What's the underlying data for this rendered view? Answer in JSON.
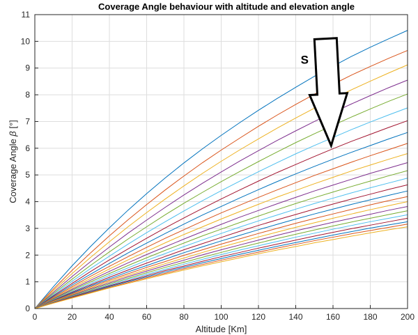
{
  "chart_data": {
    "type": "line",
    "title": "Coverage Angle behaviour with altitude and elevation angle",
    "xlabel": "Altitude [Km]",
    "ylabel_prefix": "Coverage Angle ",
    "ylabel_symbol": "β",
    "ylabel_suffix": " [°]",
    "xlim": [
      0,
      200
    ],
    "ylim": [
      0,
      11
    ],
    "xticks": [
      0,
      20,
      40,
      60,
      80,
      100,
      120,
      140,
      160,
      180,
      200
    ],
    "yticks": [
      0,
      1,
      2,
      3,
      4,
      5,
      6,
      7,
      8,
      9,
      10,
      11
    ],
    "grid": true,
    "x": [
      0,
      10,
      20,
      30,
      40,
      50,
      60,
      70,
      80,
      90,
      100,
      110,
      120,
      130,
      140,
      150,
      160,
      170,
      180,
      190,
      200
    ],
    "series": [
      {
        "values": [
          0,
          0.82,
          1.6,
          2.33,
          3.02,
          3.68,
          4.3,
          4.89,
          5.45,
          5.98,
          6.48,
          6.96,
          7.42,
          7.86,
          8.28,
          8.69,
          9.07,
          9.44,
          9.78,
          10.1,
          10.41
        ]
      },
      {
        "values": [
          0,
          0.73,
          1.43,
          2.09,
          2.72,
          3.32,
          3.89,
          4.44,
          4.96,
          5.46,
          5.93,
          6.38,
          6.82,
          7.24,
          7.64,
          8.02,
          8.39,
          8.74,
          9.06,
          9.37,
          9.66
        ]
      },
      {
        "values": [
          0,
          0.67,
          1.31,
          1.92,
          2.5,
          3.06,
          3.59,
          4.1,
          4.59,
          5.06,
          5.51,
          5.94,
          6.35,
          6.75,
          7.13,
          7.5,
          7.85,
          8.19,
          8.51,
          8.82,
          9.12
        ]
      },
      {
        "values": [
          0,
          0.61,
          1.2,
          1.76,
          2.3,
          2.82,
          3.31,
          3.79,
          4.25,
          4.69,
          5.11,
          5.52,
          5.91,
          6.29,
          6.65,
          7.0,
          7.34,
          7.66,
          7.97,
          8.27,
          8.55
        ]
      },
      {
        "values": [
          0,
          0.56,
          1.1,
          1.62,
          2.12,
          2.6,
          3.06,
          3.51,
          3.94,
          4.35,
          4.75,
          5.13,
          5.5,
          5.86,
          6.21,
          6.54,
          6.86,
          7.17,
          7.47,
          7.76,
          8.03
        ]
      },
      {
        "values": [
          0,
          0.52,
          1.02,
          1.5,
          1.96,
          2.41,
          2.84,
          3.25,
          3.65,
          4.04,
          4.41,
          4.77,
          5.12,
          5.46,
          5.79,
          6.1,
          6.4,
          6.7,
          6.98,
          7.25,
          7.51
        ]
      },
      {
        "values": [
          0,
          0.48,
          0.94,
          1.39,
          1.82,
          2.23,
          2.63,
          3.02,
          3.39,
          3.75,
          4.1,
          4.44,
          4.77,
          5.09,
          5.39,
          5.69,
          5.98,
          6.26,
          6.52,
          6.78,
          7.03
        ]
      },
      {
        "values": [
          0,
          0.45,
          0.88,
          1.29,
          1.69,
          2.08,
          2.45,
          2.81,
          3.16,
          3.5,
          3.82,
          4.14,
          4.45,
          4.75,
          5.04,
          5.32,
          5.59,
          5.85,
          6.1,
          6.35,
          6.59
        ]
      },
      {
        "values": [
          0,
          0.42,
          0.82,
          1.21,
          1.58,
          1.94,
          2.29,
          2.63,
          2.95,
          3.27,
          3.58,
          3.87,
          4.16,
          4.44,
          4.71,
          4.98,
          5.23,
          5.48,
          5.72,
          5.95,
          6.18
        ]
      },
      {
        "values": [
          0,
          0.39,
          0.77,
          1.13,
          1.48,
          1.82,
          2.14,
          2.46,
          2.77,
          3.06,
          3.35,
          3.63,
          3.9,
          4.17,
          4.42,
          4.67,
          4.91,
          5.15,
          5.37,
          5.59,
          5.8
        ]
      },
      {
        "values": [
          0,
          0.37,
          0.72,
          1.06,
          1.39,
          1.71,
          2.02,
          2.31,
          2.6,
          2.88,
          3.15,
          3.42,
          3.67,
          3.92,
          4.16,
          4.4,
          4.62,
          4.84,
          5.06,
          5.26,
          5.46
        ]
      },
      {
        "values": [
          0,
          0.35,
          0.68,
          1.0,
          1.31,
          1.61,
          1.9,
          2.18,
          2.45,
          2.72,
          2.97,
          3.22,
          3.46,
          3.7,
          3.93,
          4.15,
          4.36,
          4.57,
          4.77,
          4.97,
          5.16
        ]
      },
      {
        "values": [
          0,
          0.33,
          0.64,
          0.94,
          1.24,
          1.52,
          1.8,
          2.06,
          2.32,
          2.57,
          2.81,
          3.05,
          3.28,
          3.5,
          3.72,
          3.93,
          4.13,
          4.33,
          4.52,
          4.7,
          4.88
        ]
      },
      {
        "values": [
          0,
          0.31,
          0.61,
          0.89,
          1.17,
          1.44,
          1.7,
          1.95,
          2.2,
          2.43,
          2.66,
          2.89,
          3.11,
          3.32,
          3.52,
          3.72,
          3.91,
          4.1,
          4.28,
          4.46,
          4.63
        ]
      },
      {
        "values": [
          0,
          0.29,
          0.58,
          0.85,
          1.11,
          1.37,
          1.61,
          1.85,
          2.09,
          2.31,
          2.53,
          2.74,
          2.95,
          3.15,
          3.35,
          3.54,
          3.72,
          3.9,
          4.07,
          4.24,
          4.4
        ]
      },
      {
        "values": [
          0,
          0.28,
          0.55,
          0.81,
          1.06,
          1.3,
          1.54,
          1.76,
          1.99,
          2.2,
          2.41,
          2.61,
          2.81,
          3.0,
          3.19,
          3.37,
          3.54,
          3.71,
          3.88,
          4.04,
          4.19
        ]
      },
      {
        "values": [
          0,
          0.27,
          0.52,
          0.77,
          1.01,
          1.24,
          1.46,
          1.68,
          1.89,
          2.1,
          2.3,
          2.49,
          2.68,
          2.86,
          3.04,
          3.21,
          3.38,
          3.54,
          3.7,
          3.85,
          4.0
        ]
      },
      {
        "values": [
          0,
          0.25,
          0.5,
          0.74,
          0.96,
          1.19,
          1.4,
          1.61,
          1.81,
          2.01,
          2.2,
          2.38,
          2.56,
          2.74,
          2.91,
          3.07,
          3.23,
          3.38,
          3.53,
          3.68,
          3.82
        ]
      },
      {
        "values": [
          0,
          0.24,
          0.48,
          0.7,
          0.92,
          1.13,
          1.34,
          1.54,
          1.73,
          1.92,
          2.1,
          2.28,
          2.45,
          2.62,
          2.78,
          2.94,
          3.09,
          3.24,
          3.38,
          3.52,
          3.66
        ]
      },
      {
        "values": [
          0,
          0.23,
          0.46,
          0.67,
          0.88,
          1.09,
          1.28,
          1.47,
          1.66,
          1.84,
          2.02,
          2.19,
          2.35,
          2.51,
          2.67,
          2.82,
          2.97,
          3.11,
          3.25,
          3.38,
          3.51
        ]
      },
      {
        "values": [
          0,
          0.22,
          0.44,
          0.65,
          0.85,
          1.04,
          1.23,
          1.42,
          1.59,
          1.77,
          1.94,
          2.1,
          2.26,
          2.41,
          2.56,
          2.71,
          2.85,
          2.99,
          3.12,
          3.25,
          3.38
        ]
      },
      {
        "values": [
          0,
          0.21,
          0.42,
          0.62,
          0.82,
          1.01,
          1.19,
          1.37,
          1.54,
          1.71,
          1.87,
          2.03,
          2.18,
          2.33,
          2.47,
          2.61,
          2.75,
          2.88,
          3.01,
          3.13,
          3.25
        ]
      },
      {
        "values": [
          0,
          0.21,
          0.41,
          0.6,
          0.79,
          0.97,
          1.15,
          1.32,
          1.49,
          1.65,
          1.81,
          1.96,
          2.11,
          2.26,
          2.4,
          2.54,
          2.67,
          2.8,
          2.92,
          3.04,
          3.16
        ]
      },
      {
        "values": [
          0,
          0.2,
          0.39,
          0.58,
          0.77,
          0.94,
          1.11,
          1.28,
          1.44,
          1.6,
          1.75,
          1.9,
          2.05,
          2.19,
          2.32,
          2.46,
          2.58,
          2.71,
          2.83,
          2.95,
          3.06
        ]
      }
    ],
    "series_colors": [
      "#0072BD",
      "#D95319",
      "#EDB120",
      "#7E2F8E",
      "#77AC30",
      "#4DBEEE",
      "#A2142F"
    ],
    "annotation": {
      "label": "S",
      "arrow_from": [
        156,
        10.1
      ],
      "arrow_to": [
        159,
        6.1
      ]
    }
  }
}
